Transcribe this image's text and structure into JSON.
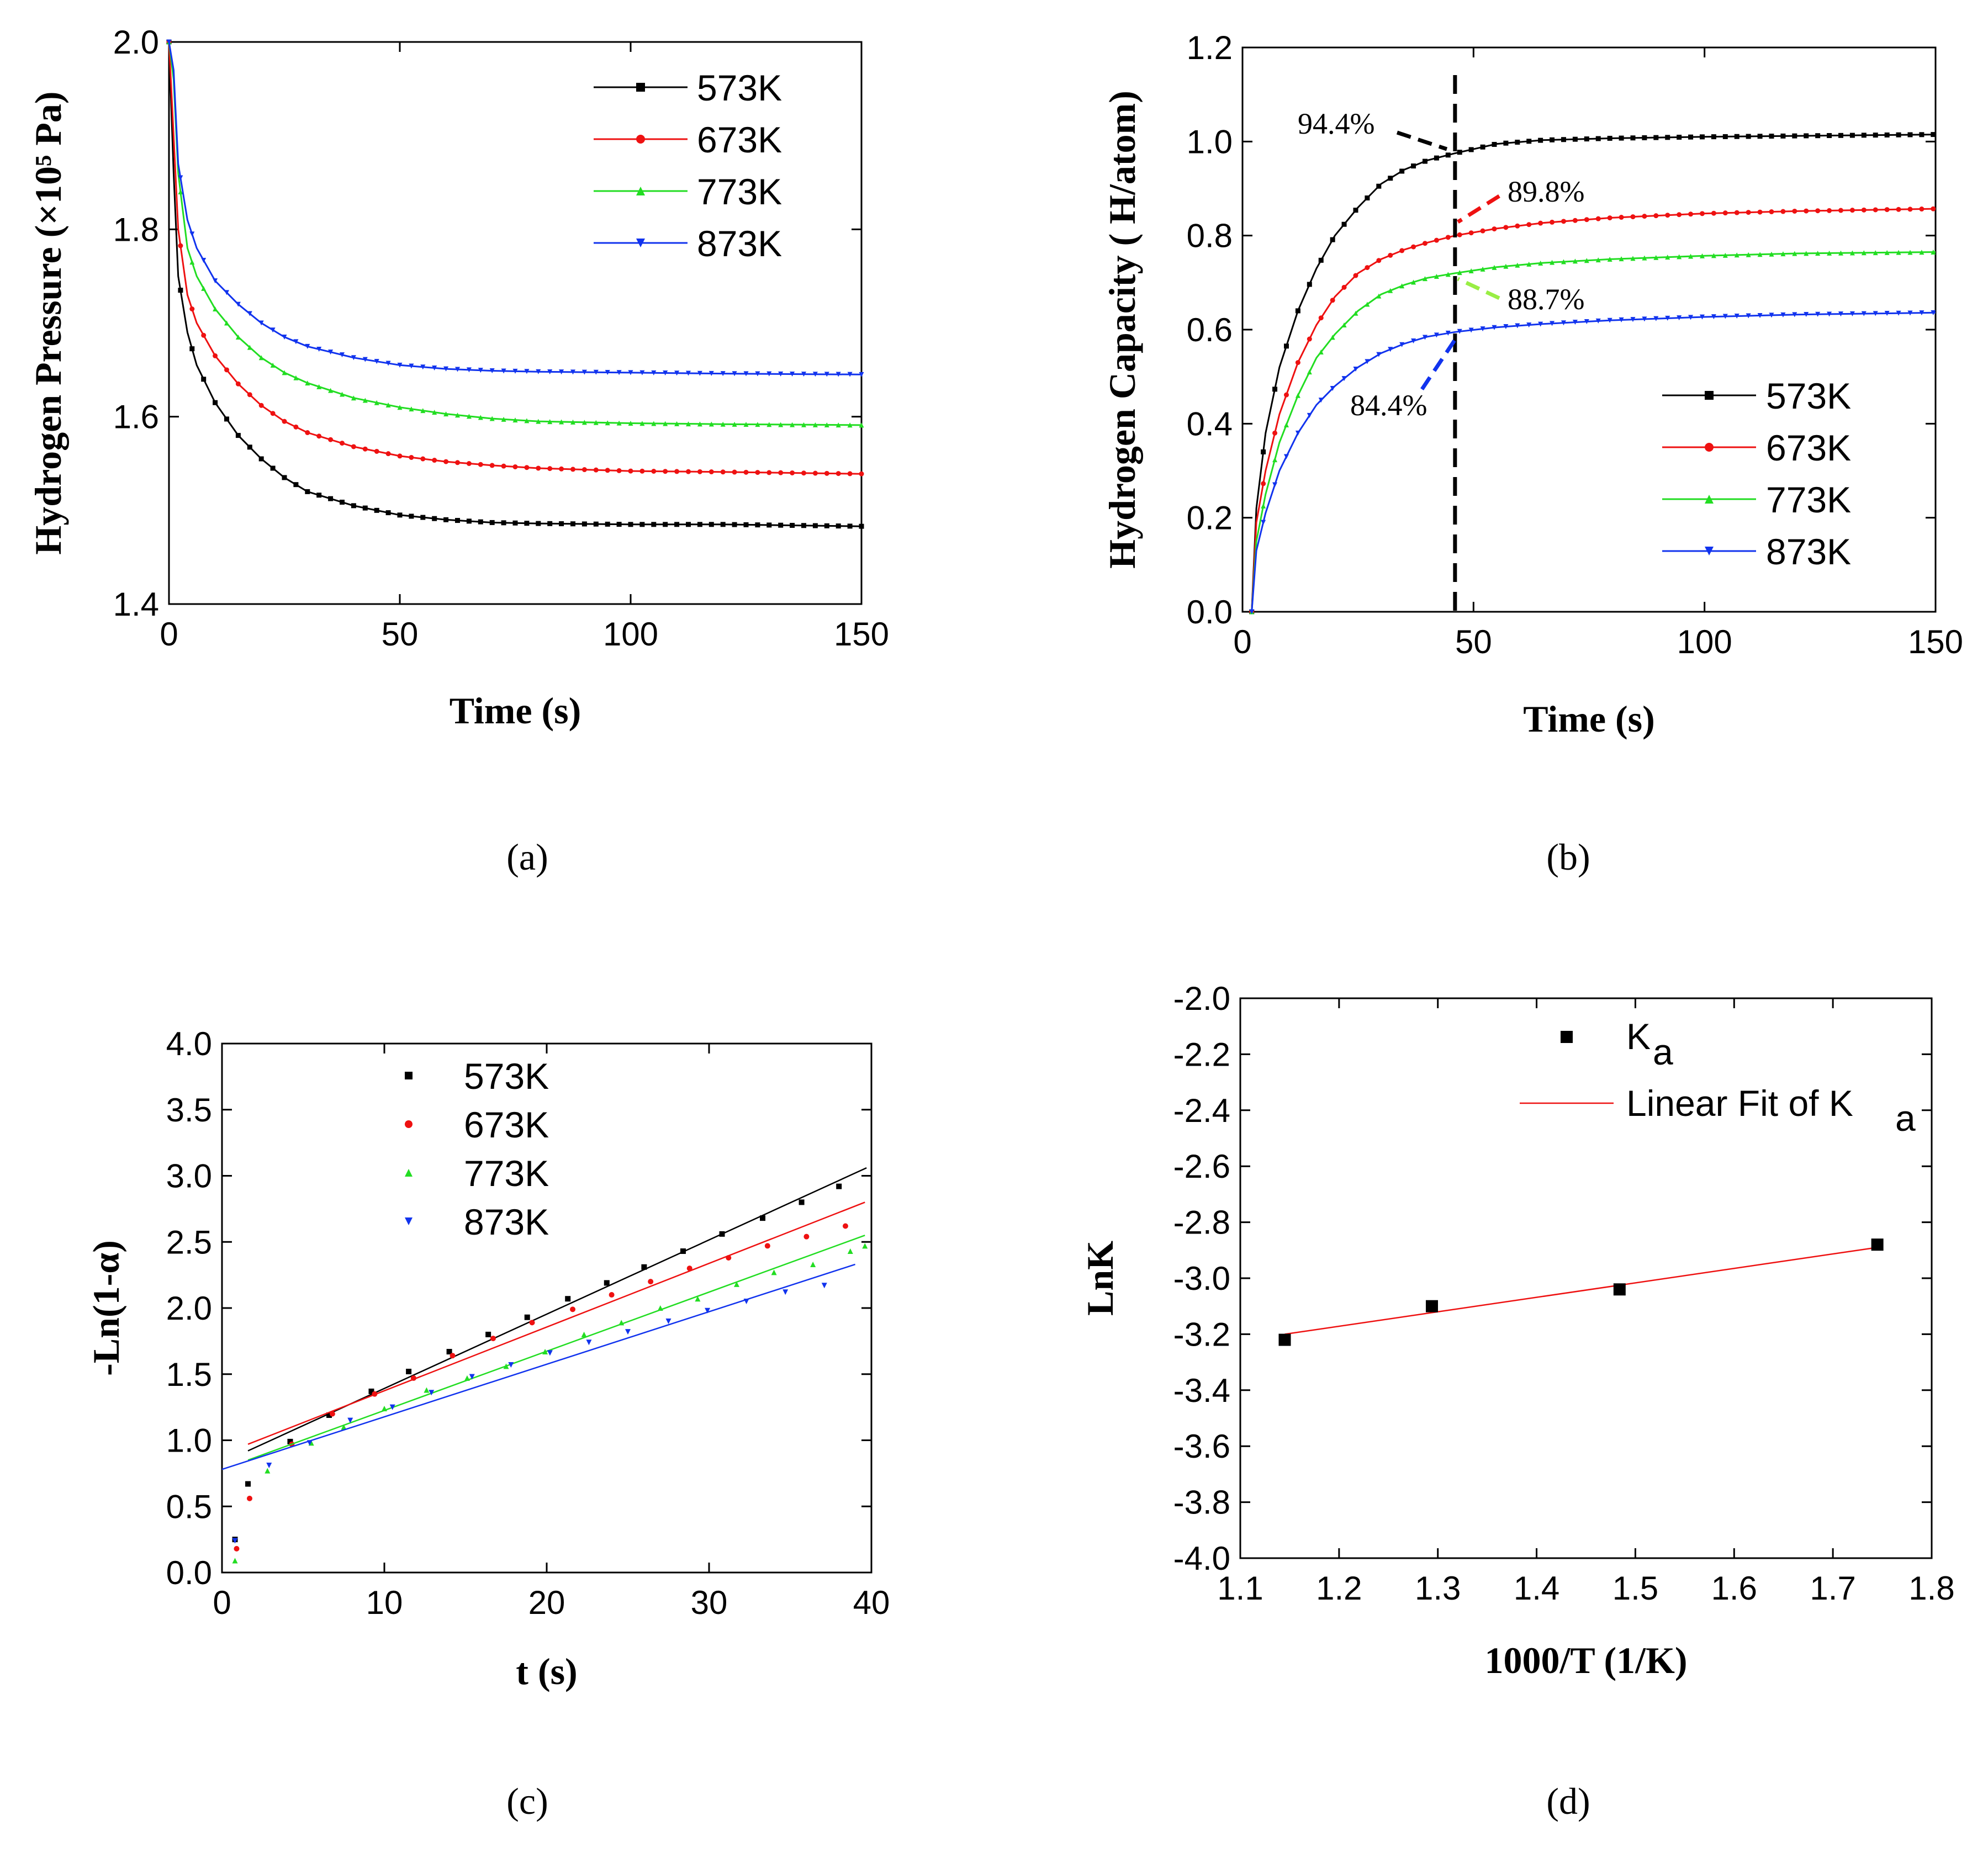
{
  "colors": {
    "573K": "#000000",
    "673K": "#ee1111",
    "773K": "#22dd22",
    "873K": "#1133ee"
  },
  "chart_data": [
    {
      "panel": "a",
      "caption": "(a)",
      "type": "line",
      "xlabel": "Time (s)",
      "ylabel": "Hydrogen Pressure (×10⁵ Pa)",
      "xlim": [
        0,
        150
      ],
      "ylim": [
        1.4,
        2.0
      ],
      "xticks": [
        0,
        50,
        100,
        150
      ],
      "yticks": [
        1.4,
        1.6,
        1.8,
        2.0
      ],
      "legend_position": "top-right",
      "x": [
        0,
        1,
        2,
        4,
        6,
        10,
        15,
        20,
        25,
        30,
        40,
        50,
        60,
        70,
        80,
        100,
        120,
        150
      ],
      "series": [
        {
          "name": "573K",
          "values": [
            2.0,
            1.86,
            1.75,
            1.69,
            1.655,
            1.615,
            1.58,
            1.555,
            1.535,
            1.52,
            1.505,
            1.495,
            1.49,
            1.487,
            1.486,
            1.485,
            1.485,
            1.483
          ]
        },
        {
          "name": "673K",
          "values": [
            2.0,
            1.9,
            1.8,
            1.73,
            1.7,
            1.665,
            1.635,
            1.612,
            1.595,
            1.583,
            1.568,
            1.558,
            1.552,
            1.548,
            1.545,
            1.542,
            1.541,
            1.539
          ]
        },
        {
          "name": "773K",
          "values": [
            2.0,
            1.96,
            1.86,
            1.78,
            1.75,
            1.715,
            1.685,
            1.663,
            1.647,
            1.636,
            1.62,
            1.61,
            1.603,
            1.598,
            1.595,
            1.593,
            1.592,
            1.591
          ]
        },
        {
          "name": "873K",
          "values": [
            2.0,
            1.97,
            1.87,
            1.81,
            1.78,
            1.745,
            1.72,
            1.7,
            1.685,
            1.675,
            1.663,
            1.655,
            1.651,
            1.649,
            1.648,
            1.647,
            1.646,
            1.645
          ]
        }
      ]
    },
    {
      "panel": "b",
      "caption": "(b)",
      "type": "line",
      "xlabel": "Time  (s)",
      "ylabel": "Hydrogen Capacity ( H/atom)",
      "xlim": [
        0,
        150
      ],
      "ylim": [
        0.0,
        1.2
      ],
      "xticks": [
        0,
        50,
        100,
        150
      ],
      "yticks": [
        0.0,
        0.2,
        0.4,
        0.6,
        0.8,
        1.0,
        1.2
      ],
      "legend_position": "bottom-right",
      "vertical_marker_x": 46,
      "annotations": [
        "94.4%",
        "89.8%",
        "88.7%",
        "84.4%"
      ],
      "x": [
        2,
        3,
        5,
        8,
        12,
        16,
        20,
        25,
        30,
        35,
        40,
        46,
        55,
        65,
        80,
        100,
        120,
        150
      ],
      "series": [
        {
          "name": "573K",
          "values": [
            0.0,
            0.22,
            0.38,
            0.52,
            0.64,
            0.73,
            0.8,
            0.86,
            0.91,
            0.94,
            0.96,
            0.975,
            0.995,
            1.003,
            1.007,
            1.01,
            1.012,
            1.015
          ]
        },
        {
          "name": "673K",
          "values": [
            0.0,
            0.19,
            0.3,
            0.42,
            0.53,
            0.61,
            0.67,
            0.72,
            0.75,
            0.77,
            0.785,
            0.8,
            0.815,
            0.827,
            0.838,
            0.847,
            0.852,
            0.857
          ]
        },
        {
          "name": "773K",
          "values": [
            0.0,
            0.15,
            0.25,
            0.36,
            0.46,
            0.54,
            0.59,
            0.64,
            0.675,
            0.695,
            0.71,
            0.72,
            0.733,
            0.742,
            0.75,
            0.757,
            0.762,
            0.765
          ]
        },
        {
          "name": "873K",
          "values": [
            0.0,
            0.13,
            0.21,
            0.3,
            0.38,
            0.44,
            0.48,
            0.52,
            0.55,
            0.57,
            0.585,
            0.595,
            0.605,
            0.612,
            0.62,
            0.627,
            0.632,
            0.636
          ]
        }
      ]
    },
    {
      "panel": "c",
      "caption": "(c)",
      "type": "scatter",
      "xlabel": "t (s)",
      "ylabel": "-Ln(1-α)",
      "xlim": [
        0,
        40
      ],
      "ylim": [
        0.0,
        4.0
      ],
      "xticks": [
        0,
        10,
        20,
        30,
        40
      ],
      "yticks": [
        0.0,
        0.5,
        1.0,
        1.5,
        2.0,
        2.5,
        3.0,
        3.5,
        4.0
      ],
      "legend_position": "top-left",
      "series": [
        {
          "name": "573K",
          "x": [
            0.8,
            1.6,
            4.2,
            6.6,
            9.2,
            11.5,
            14.0,
            16.4,
            18.8,
            21.3,
            23.7,
            26.0,
            28.4,
            30.8,
            33.3,
            35.7,
            38.0
          ],
          "values": [
            0.25,
            0.67,
            0.99,
            1.19,
            1.37,
            1.52,
            1.67,
            1.8,
            1.93,
            2.07,
            2.19,
            2.31,
            2.43,
            2.56,
            2.68,
            2.8,
            2.92
          ],
          "fit": {
            "x": [
              1.6,
              39.7
            ],
            "y": [
              0.92,
              3.06
            ]
          }
        },
        {
          "name": "673K",
          "x": [
            0.9,
            1.7,
            4.3,
            6.8,
            9.4,
            11.8,
            14.2,
            16.7,
            19.1,
            21.6,
            24.0,
            26.4,
            28.8,
            31.2,
            33.6,
            36.0,
            38.4
          ],
          "values": [
            0.18,
            0.56,
            0.97,
            1.2,
            1.35,
            1.47,
            1.64,
            1.77,
            1.89,
            1.99,
            2.1,
            2.2,
            2.3,
            2.38,
            2.47,
            2.54,
            2.62
          ],
          "fit": {
            "x": [
              1.6,
              39.6
            ],
            "y": [
              0.97,
              2.8
            ]
          }
        },
        {
          "name": "773K",
          "x": [
            0.8,
            2.8,
            5.5,
            7.5,
            10.0,
            12.6,
            15.1,
            17.5,
            19.9,
            22.3,
            24.6,
            27.0,
            29.3,
            31.7,
            34.0,
            36.4,
            38.7,
            39.6
          ],
          "values": [
            0.09,
            0.77,
            0.98,
            1.1,
            1.24,
            1.38,
            1.47,
            1.56,
            1.67,
            1.8,
            1.89,
            2.0,
            2.07,
            2.18,
            2.27,
            2.33,
            2.43,
            2.47
          ],
          "fit": {
            "x": [
              1.6,
              39.6
            ],
            "y": [
              0.85,
              2.55
            ]
          }
        },
        {
          "name": "873K",
          "x": [
            0.8,
            2.9,
            5.4,
            7.9,
            10.5,
            12.9,
            15.4,
            17.8,
            20.2,
            22.6,
            25.0,
            27.5,
            29.9,
            32.3,
            34.7,
            37.1
          ],
          "values": [
            0.24,
            0.81,
            0.98,
            1.15,
            1.25,
            1.36,
            1.48,
            1.57,
            1.66,
            1.74,
            1.82,
            1.9,
            1.98,
            2.05,
            2.12,
            2.17
          ],
          "fit": {
            "x": [
              0,
              39.0
            ],
            "y": [
              0.78,
              2.33
            ]
          }
        }
      ]
    },
    {
      "panel": "d",
      "caption": "(d)",
      "type": "scatter",
      "xlabel": "1000/T (1/K)",
      "ylabel": "LnK_a",
      "xlim": [
        1.1,
        1.8
      ],
      "ylim": [
        -4.0,
        -2.0
      ],
      "xticks": [
        1.1,
        1.2,
        1.3,
        1.4,
        1.5,
        1.6,
        1.7,
        1.8
      ],
      "yticks": [
        -2.0,
        -2.2,
        -2.4,
        -2.6,
        -2.8,
        -3.0,
        -3.2,
        -3.4,
        -3.6,
        -3.8,
        -4.0
      ],
      "legend_position": "top-right",
      "series": [
        {
          "name": "K_a",
          "x": [
            1.145,
            1.294,
            1.484,
            1.745
          ],
          "values": [
            -3.22,
            -3.1,
            -3.04,
            -2.88
          ]
        },
        {
          "name": "Linear Fit of K_a",
          "x": [
            1.145,
            1.745
          ],
          "values": [
            -3.2,
            -2.89
          ]
        }
      ]
    }
  ]
}
